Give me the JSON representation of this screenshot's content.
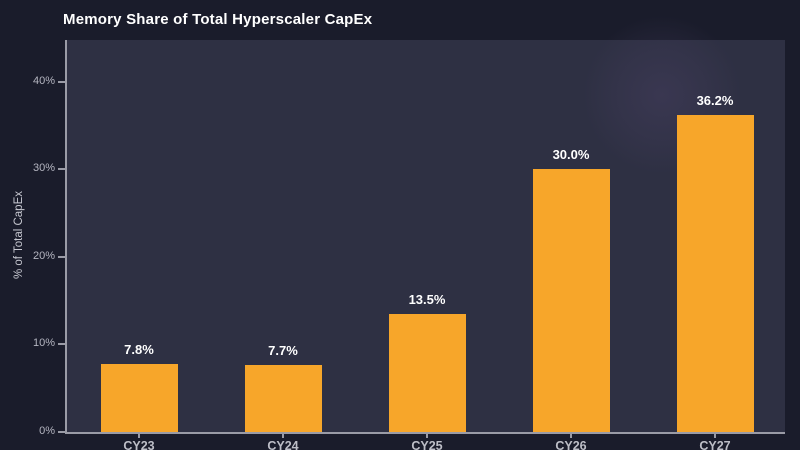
{
  "page": {
    "background": "#1a1c2b",
    "plot_background": "#2e3043"
  },
  "chart_data": {
    "type": "bar",
    "title": "Memory Share of Total Hyperscaler CapEx",
    "xlabel": "",
    "ylabel": "% of Total CapEx",
    "categories": [
      "CY23",
      "CY24",
      "CY25",
      "CY26",
      "CY27"
    ],
    "values": [
      7.8,
      7.7,
      13.5,
      30.0,
      36.2
    ],
    "value_labels": [
      "7.8%",
      "7.7%",
      "13.5%",
      "30.0%",
      "36.2%"
    ],
    "ylim": [
      0,
      45
    ],
    "yticks": {
      "values": [
        0,
        10,
        20,
        30,
        40
      ],
      "labels": [
        "0%",
        "10%",
        "20%",
        "30%",
        "40%"
      ]
    },
    "grid": false,
    "legend": "none",
    "bar_color": "#f7a62a",
    "value_label_color": "#ffffff",
    "axis_color": "#9a9ba6",
    "tick_label_color": "#b4b5c0",
    "category_label_color": "#bdbec7"
  }
}
